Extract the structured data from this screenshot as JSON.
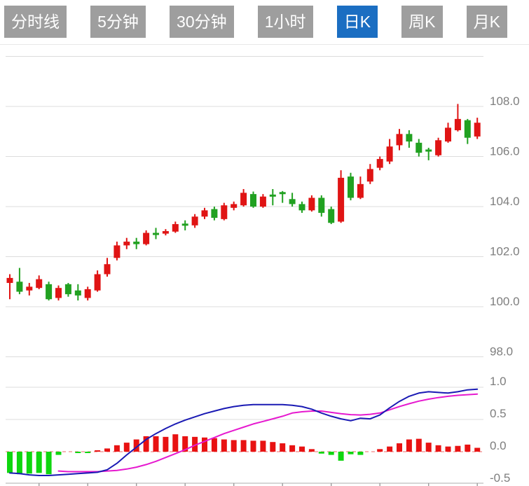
{
  "toolbar": {
    "tabs": [
      {
        "label": "分时线",
        "active": false
      },
      {
        "label": "5分钟",
        "active": false
      },
      {
        "label": "30分钟",
        "active": false
      },
      {
        "label": "1小时",
        "active": false
      },
      {
        "label": "日K",
        "active": true
      },
      {
        "label": "周K",
        "active": false
      },
      {
        "label": "月K",
        "active": false
      }
    ],
    "active_color": "#1B6EC2",
    "inactive_color": "#9E9E9E",
    "text_color": "#FFFFFF"
  },
  "chart_data": {
    "type": "candlestick",
    "indicator": "MACD",
    "grid": true,
    "legend_position": "none",
    "colors": {
      "up": "#E01414",
      "down": "#21A121",
      "hist_up": "#E81212",
      "hist_down": "#0FD60F",
      "dif_line": "#1A1AB4",
      "dea_line": "#E619CF",
      "grid_line": "#DCDCDC",
      "zero_line": "#F08888",
      "axis_line": "#C8C8C8",
      "tick": "#9C9C9C",
      "label": "#7E7E7E"
    },
    "upper_axis": {
      "range": [
        98,
        110
      ],
      "gridlines": [
        110,
        108,
        106,
        104,
        102,
        100,
        98
      ],
      "labels": [
        {
          "value": 108,
          "text": "108.0"
        },
        {
          "value": 106,
          "text": "106.0"
        },
        {
          "value": 104,
          "text": "104.0"
        },
        {
          "value": 102,
          "text": "102.0"
        },
        {
          "value": 100,
          "text": "100.0"
        },
        {
          "value": 98,
          "text": "98.0"
        }
      ]
    },
    "lower_axis": {
      "range": [
        -0.5,
        1.0
      ],
      "gridlines": [
        1.0,
        0.5
      ],
      "zero": 0.0,
      "labels": [
        {
          "value": 1.0,
          "text": "1.0"
        },
        {
          "value": 0.5,
          "text": "0.5"
        },
        {
          "value": 0.0,
          "text": "0.0"
        },
        {
          "value": -0.5,
          "text": "-0.5"
        }
      ]
    },
    "x_tick_every": 5,
    "candle_format": [
      "open",
      "close",
      "low",
      "high"
    ],
    "candles": [
      [
        100.95,
        101.15,
        100.3,
        101.3
      ],
      [
        101.0,
        100.6,
        100.5,
        101.55
      ],
      [
        100.65,
        100.8,
        100.45,
        100.95
      ],
      [
        100.75,
        101.1,
        100.7,
        101.25
      ],
      [
        100.9,
        100.3,
        100.25,
        101.0
      ],
      [
        100.35,
        100.75,
        100.25,
        100.85
      ],
      [
        100.9,
        100.5,
        100.4,
        100.95
      ],
      [
        100.65,
        100.45,
        100.25,
        100.9
      ],
      [
        100.35,
        100.7,
        100.25,
        100.8
      ],
      [
        100.65,
        101.3,
        100.6,
        101.45
      ],
      [
        101.3,
        101.7,
        101.2,
        101.95
      ],
      [
        101.95,
        102.45,
        101.85,
        102.6
      ],
      [
        102.45,
        102.6,
        102.3,
        102.75
      ],
      [
        102.6,
        102.5,
        102.3,
        102.75
      ],
      [
        102.5,
        102.95,
        102.45,
        103.05
      ],
      [
        102.95,
        102.88,
        102.7,
        103.15
      ],
      [
        102.92,
        103.02,
        102.85,
        103.1
      ],
      [
        103.0,
        103.3,
        102.95,
        103.4
      ],
      [
        103.32,
        103.25,
        103.05,
        103.45
      ],
      [
        103.25,
        103.6,
        103.15,
        103.7
      ],
      [
        103.6,
        103.85,
        103.5,
        103.95
      ],
      [
        103.9,
        103.55,
        103.45,
        104.0
      ],
      [
        103.5,
        104.05,
        103.45,
        104.15
      ],
      [
        103.95,
        104.1,
        103.85,
        104.2
      ],
      [
        104.05,
        104.55,
        104.0,
        104.7
      ],
      [
        104.5,
        104.0,
        103.95,
        104.6
      ],
      [
        104.0,
        104.4,
        103.95,
        104.5
      ],
      [
        104.48,
        104.4,
        104.05,
        104.7
      ],
      [
        104.58,
        104.52,
        104.15,
        104.62
      ],
      [
        104.3,
        104.1,
        104.0,
        104.55
      ],
      [
        104.1,
        103.85,
        103.75,
        104.2
      ],
      [
        103.85,
        104.35,
        103.8,
        104.45
      ],
      [
        104.35,
        103.75,
        103.6,
        104.45
      ],
      [
        103.9,
        103.35,
        103.3,
        104.0
      ],
      [
        103.4,
        105.15,
        103.35,
        105.45
      ],
      [
        105.2,
        104.35,
        104.25,
        105.35
      ],
      [
        104.35,
        104.9,
        104.3,
        105.2
      ],
      [
        105.0,
        105.5,
        104.9,
        105.7
      ],
      [
        105.55,
        105.9,
        105.45,
        106.0
      ],
      [
        105.8,
        106.4,
        105.7,
        106.7
      ],
      [
        106.45,
        106.9,
        106.25,
        107.1
      ],
      [
        106.9,
        106.6,
        106.35,
        107.05
      ],
      [
        106.55,
        106.15,
        106.0,
        106.7
      ],
      [
        106.28,
        106.22,
        105.85,
        106.35
      ],
      [
        106.05,
        106.65,
        106.0,
        106.75
      ],
      [
        106.6,
        107.15,
        106.55,
        107.35
      ],
      [
        107.05,
        107.5,
        107.0,
        108.1
      ],
      [
        107.45,
        106.75,
        106.5,
        107.5
      ],
      [
        106.8,
        107.35,
        106.7,
        107.55
      ]
    ],
    "macd": {
      "hist": [
        -0.33,
        -0.35,
        -0.34,
        -0.33,
        -0.35,
        -0.05,
        0.0,
        -0.02,
        -0.02,
        0.02,
        0.05,
        0.1,
        0.14,
        0.19,
        0.24,
        0.24,
        0.23,
        0.27,
        0.24,
        0.23,
        0.22,
        0.21,
        0.19,
        0.18,
        0.18,
        0.17,
        0.17,
        0.15,
        0.13,
        0.1,
        0.08,
        0.04,
        -0.03,
        -0.05,
        -0.14,
        -0.04,
        -0.05,
        0.0,
        0.04,
        0.08,
        0.13,
        0.19,
        0.2,
        0.14,
        0.1,
        0.08,
        0.09,
        0.11,
        0.06
      ],
      "dif": [
        -0.33,
        -0.34,
        -0.36,
        -0.37,
        -0.37,
        -0.36,
        -0.35,
        -0.34,
        -0.33,
        -0.32,
        -0.28,
        -0.18,
        -0.05,
        0.07,
        0.19,
        0.28,
        0.36,
        0.43,
        0.49,
        0.54,
        0.59,
        0.63,
        0.67,
        0.7,
        0.72,
        0.73,
        0.73,
        0.73,
        0.73,
        0.72,
        0.7,
        0.66,
        0.6,
        0.55,
        0.51,
        0.48,
        0.52,
        0.51,
        0.57,
        0.68,
        0.78,
        0.86,
        0.91,
        0.93,
        0.92,
        0.91,
        0.93,
        0.96,
        0.97
      ],
      "dea": [
        null,
        null,
        null,
        null,
        null,
        -0.3,
        -0.31,
        -0.31,
        -0.31,
        -0.31,
        -0.3,
        -0.29,
        -0.27,
        -0.24,
        -0.2,
        -0.15,
        -0.09,
        -0.03,
        0.03,
        0.1,
        0.16,
        0.22,
        0.28,
        0.33,
        0.38,
        0.43,
        0.47,
        0.51,
        0.55,
        0.6,
        0.62,
        0.63,
        0.63,
        0.61,
        0.59,
        0.575,
        0.57,
        0.58,
        0.6,
        0.65,
        0.7,
        0.745,
        0.785,
        0.815,
        0.84,
        0.86,
        0.875,
        0.885,
        0.895
      ]
    }
  }
}
